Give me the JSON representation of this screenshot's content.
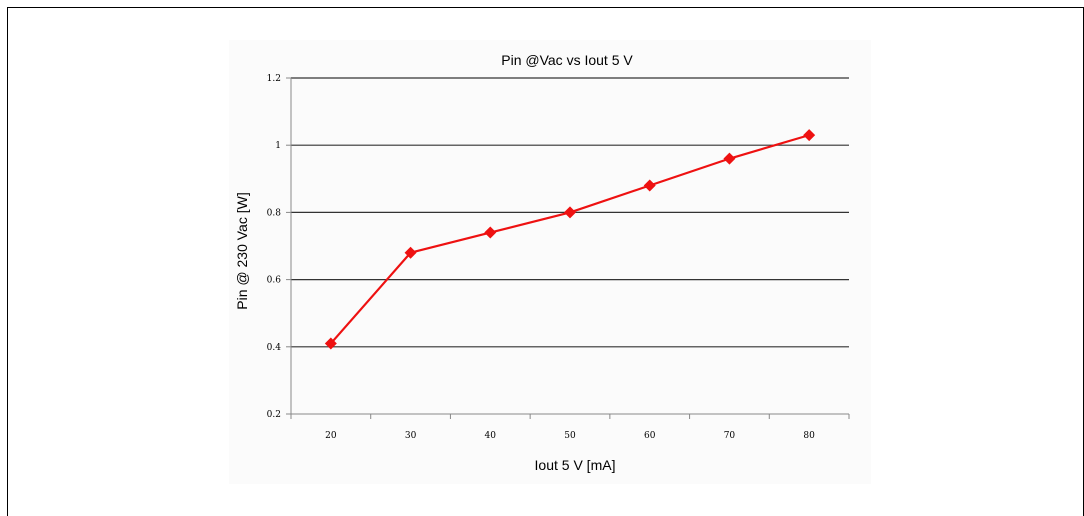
{
  "chart_data": {
    "type": "line",
    "title": "Pin @Vac vs Iout 5 V",
    "xlabel": "Iout 5 V [mA]",
    "ylabel": "Pin @ 230 Vac [W]",
    "categories": [
      "20",
      "30",
      "40",
      "50",
      "60",
      "70",
      "80"
    ],
    "series": [
      {
        "values": [
          0.41,
          0.68,
          0.74,
          0.8,
          0.88,
          0.96,
          1.03
        ]
      }
    ],
    "ylim": [
      0.2,
      1.2
    ],
    "yticks": [
      "0.2",
      "0.4",
      "0.6",
      "0.8",
      "1",
      "1.2"
    ],
    "grid": "horizontal",
    "marker": "diamond",
    "colors": {
      "series": "#ee1111",
      "grid": "#333333",
      "axis": "#888888"
    }
  }
}
